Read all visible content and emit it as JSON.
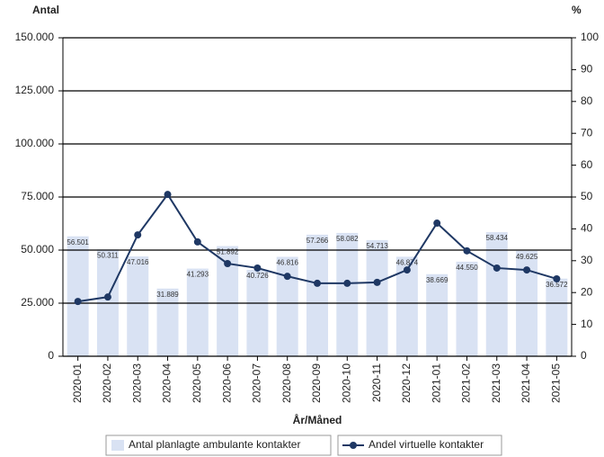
{
  "chart_data": {
    "type": "combo",
    "y_label": "Antal",
    "y2_label": "%",
    "x_label": "År/Måned",
    "categories": [
      "2020-01",
      "2020-02",
      "2020-03",
      "2020-04",
      "2020-05",
      "2020-06",
      "2020-07",
      "2020-08",
      "2020-09",
      "2020-10",
      "2020-11",
      "2020-12",
      "2021-01",
      "2021-02",
      "2021-03",
      "2021-04",
      "2021-05"
    ],
    "series": [
      {
        "name": "Antal planlagte ambulante kontakter",
        "type": "bar",
        "color": "#d9e2f3",
        "values": [
          56501,
          50311,
          47016,
          31889,
          41293,
          51892,
          40726,
          46816,
          57266,
          58082,
          54713,
          46874,
          38669,
          44550,
          58434,
          49625,
          36572
        ],
        "value_labels": [
          "56.501",
          "50.311",
          "47.016",
          "31.889",
          "41.293",
          "51.892",
          "40.726",
          "46.816",
          "57.266",
          "58.082",
          "54.713",
          "46.874",
          "38.669",
          "44.550",
          "58.434",
          "49.625",
          "36.572"
        ]
      },
      {
        "name": "Andel virtuelle kontakter",
        "type": "line",
        "axis": "y2",
        "color": "#1f3864",
        "values": [
          17.2,
          18.6,
          38.1,
          50.8,
          35.9,
          29.1,
          27.7,
          25.1,
          22.9,
          22.9,
          23.2,
          27.1,
          41.8,
          33.1,
          27.7,
          27.1,
          24.3
        ]
      }
    ],
    "ylim": [
      0,
      150000
    ],
    "yticks": [
      0,
      {
        "value": 25000,
        "label": "25.000"
      },
      {
        "value": 50000,
        "label": "50.000"
      },
      {
        "value": 75000,
        "label": "75.000"
      },
      {
        "value": 100000,
        "label": "100.000"
      },
      {
        "value": 125000,
        "label": "125.000"
      },
      {
        "value": 150000,
        "label": "150.000"
      }
    ],
    "y2lim": [
      0,
      100
    ],
    "y2ticks": [
      0,
      10,
      20,
      30,
      40,
      50,
      60,
      70,
      80,
      90,
      100
    ],
    "grid": true
  }
}
